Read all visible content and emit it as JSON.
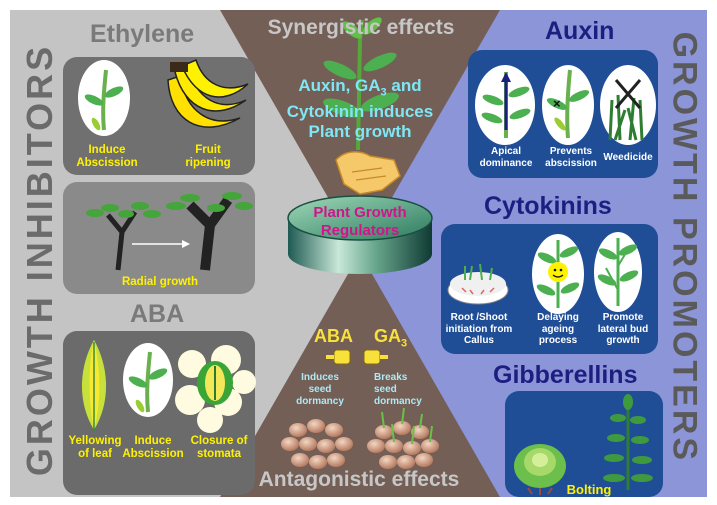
{
  "side_labels": {
    "inhibitors": "GROWTH INHIBITORS",
    "promoters_line1": "GROWTH",
    "promoters_line2": "PROMOTERS"
  },
  "center": {
    "synergistic": "Synergistic effects",
    "synergy_line1": "Auxin, GA",
    "synergy_sub": "3",
    "synergy_line1b": " and",
    "synergy_line2": "Cytokinin induces",
    "synergy_line3": "Plant growth",
    "regulators_line1": "Plant Growth",
    "regulators_line2": "Regulators",
    "aba": "ABA",
    "ga": "GA",
    "ga_sub": "3",
    "induces": "Induces seed dormancy",
    "breaks": "Breaks seed dormancy",
    "antagonistic": "Antagonistic effects"
  },
  "ethylene": {
    "title": "Ethylene",
    "abscission": "Induce Abscission",
    "ripening": "Fruit ripening",
    "radial": "Radial growth"
  },
  "aba": {
    "title": "ABA",
    "yellowing": "Yellowing of leaf",
    "abscission": "Induce Abscission",
    "stomata": "Closure of stomata"
  },
  "auxin": {
    "title": "Auxin",
    "apical": "Apical dominance",
    "prevents": "Prevents abscission",
    "weedicide": "Weedicide"
  },
  "cytokinins": {
    "title": "Cytokinins",
    "callus": "Root /Shoot initiation from Callus",
    "ageing": "Delaying ageing process",
    "lateral": "Promote lateral bud growth"
  },
  "gibberellins": {
    "title": "Gibberellins",
    "bolting": "Bolting"
  },
  "colors": {
    "left_bg": "#c4c4c4",
    "right_bg": "#8c95d8",
    "center_bg": "#735f56",
    "panel_gray": "#707070",
    "panel_blue": "#1f4e97",
    "accent_yellow": "#fff200",
    "accent_magenta": "#d1148b"
  }
}
